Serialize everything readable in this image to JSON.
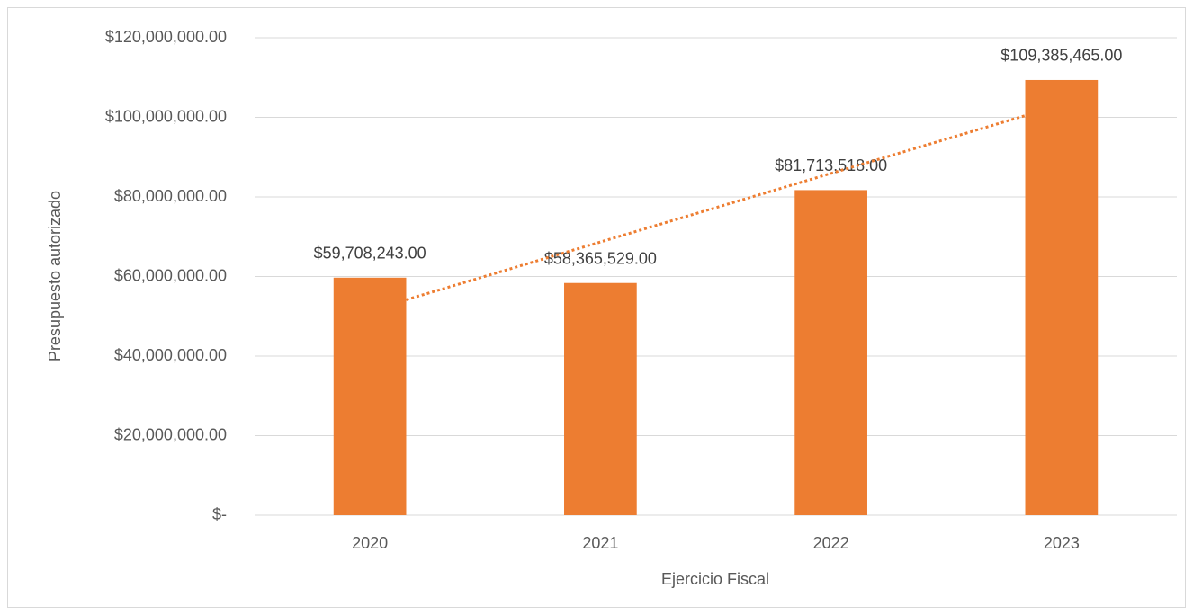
{
  "chart_data": {
    "type": "bar",
    "categories": [
      "2020",
      "2021",
      "2022",
      "2023"
    ],
    "values": [
      59708243,
      58365529,
      81713518,
      109385465
    ],
    "value_labels": [
      "$59,708,243.00",
      "$58,365,529.00",
      "$81,713,518.00",
      "$109,385,465.00"
    ],
    "color": "#ed7d31",
    "trendline": {
      "type": "linear",
      "color": "#ed7d31",
      "style": "dotted"
    },
    "x_label": "Ejercicio Fiscal",
    "y_label": "Presupuesto autorizado",
    "ylim": [
      0,
      120000000
    ],
    "yticks": [
      {
        "value": 0,
        "label": "$-"
      },
      {
        "value": 20000000,
        "label": "$20,000,000.00"
      },
      {
        "value": 40000000,
        "label": "$40,000,000.00"
      },
      {
        "value": 60000000,
        "label": "$60,000,000.00"
      },
      {
        "value": 80000000,
        "label": "$80,000,000.00"
      },
      {
        "value": 100000000,
        "label": "$100,000,000.00"
      },
      {
        "value": 120000000,
        "label": "$120,000,000.00"
      }
    ],
    "grid": true
  }
}
